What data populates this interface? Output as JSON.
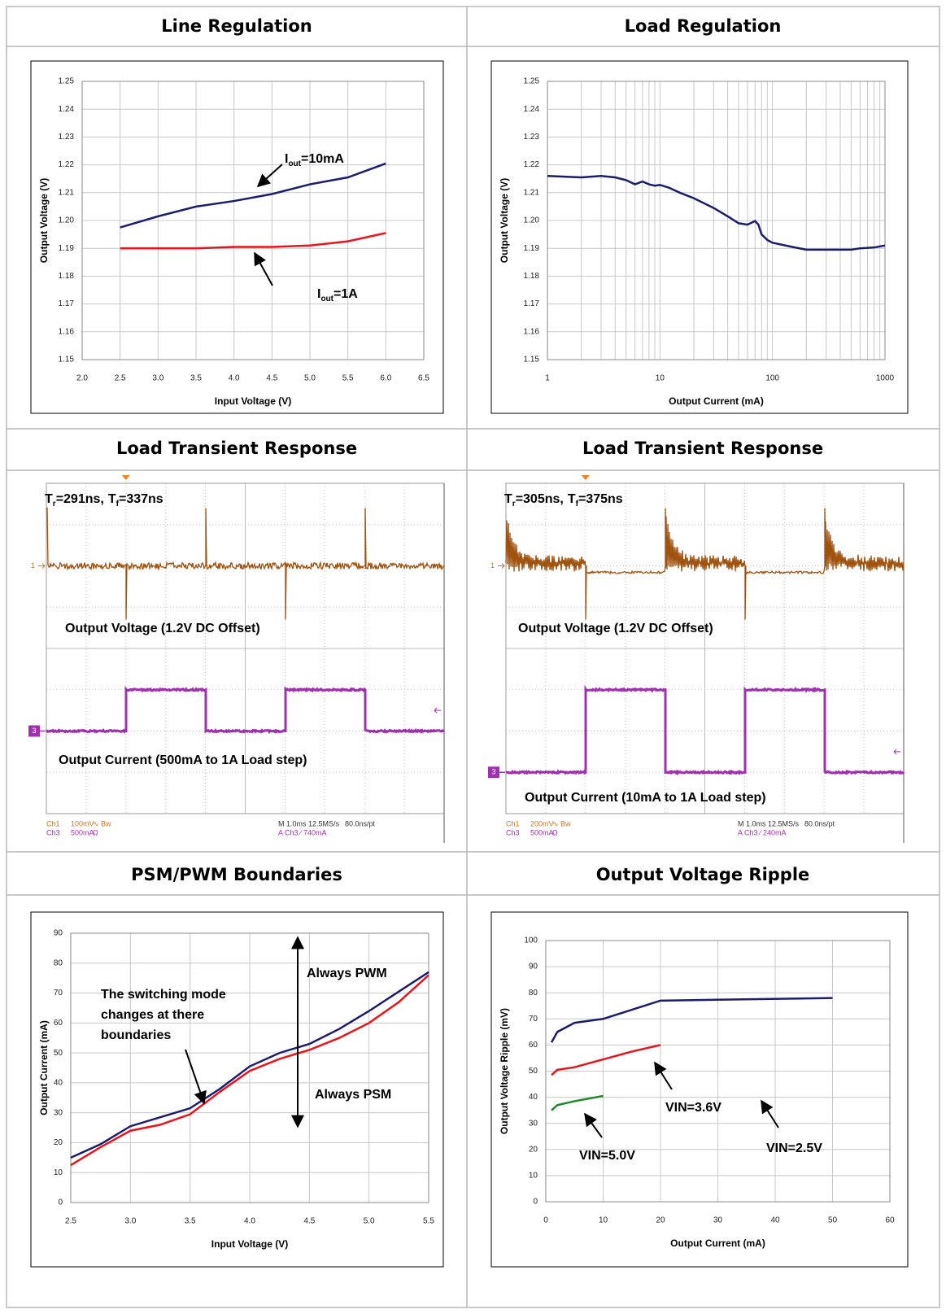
{
  "chart_data": [
    {
      "type": "line",
      "title": "Line Regulation",
      "xlabel": "Input Voltage (V)",
      "ylabel": "Output Voltage (V)",
      "xlim": [
        2,
        6.5
      ],
      "xticks": [
        {
          "value": 2,
          "label": "2.0"
        },
        2.5,
        {
          "value": 3,
          "label": "3.0"
        },
        3.5,
        {
          "value": 4,
          "label": "4.0"
        },
        4.5,
        {
          "value": 5,
          "label": "5.0"
        },
        5.5,
        {
          "value": 6,
          "label": "6.0"
        },
        6.5
      ],
      "ylim": [
        1.15,
        1.25
      ],
      "yticks": [
        1.15,
        1.16,
        1.17,
        1.18,
        1.19,
        {
          "value": 1.2,
          "label": "1.20"
        },
        1.21,
        1.22,
        1.23,
        1.24,
        1.25
      ],
      "grid": true,
      "series": [
        {
          "label": [
            "I",
            "out",
            "=10mA"
          ],
          "color": "#1c1c6e",
          "x": [
            2.5,
            3.0,
            3.5,
            4.0,
            4.5,
            5.0,
            5.5,
            6.0
          ],
          "values": [
            1.1975,
            1.2015,
            1.205,
            1.207,
            1.2095,
            1.213,
            1.2155,
            1.2205
          ]
        },
        {
          "label": [
            "I",
            "out",
            "=1A"
          ],
          "color": "#e8141c",
          "x": [
            2.5,
            3.0,
            3.5,
            4.0,
            4.5,
            5.0,
            5.5,
            6.0
          ],
          "values": [
            1.19,
            1.19,
            1.19,
            1.1905,
            1.1905,
            1.191,
            1.1925,
            1.1955
          ]
        }
      ]
    },
    {
      "type": "line",
      "title": "Load Regulation",
      "xlabel": "Output Current (mA)",
      "ylabel": "Output Voltage (V)",
      "xscale": "log",
      "minor_grid": true,
      "xlim": [
        1,
        1000
      ],
      "xticks": [
        1,
        10,
        100,
        1000
      ],
      "ylim": [
        1.15,
        1.25
      ],
      "yticks": [
        1.15,
        1.16,
        1.17,
        1.18,
        1.19,
        {
          "value": 1.2,
          "label": "1.20"
        },
        1.21,
        1.22,
        1.23,
        1.24,
        1.25
      ],
      "grid": true,
      "series": [
        {
          "color": "#1c1c6e",
          "x": [
            1,
            2,
            3,
            4,
            5,
            6,
            7,
            8,
            9,
            10,
            12,
            15,
            20,
            30,
            40,
            50,
            60,
            70,
            75,
            80,
            90,
            100,
            150,
            200,
            300,
            500,
            600,
            800,
            1000
          ],
          "values": [
            1.216,
            1.2155,
            1.216,
            1.2155,
            1.2145,
            1.213,
            1.214,
            1.213,
            1.2125,
            1.2128,
            1.2118,
            1.21,
            1.208,
            1.2045,
            1.2015,
            1.199,
            1.1985,
            1.1998,
            1.1985,
            1.195,
            1.193,
            1.192,
            1.1905,
            1.1895,
            1.1895,
            1.1895,
            1.19,
            1.1903,
            1.191
          ]
        }
      ]
    },
    {
      "type": "scope",
      "title": "Load Transient Response",
      "timing": [
        [
          "T",
          "r",
          "=291ns,"
        ],
        [
          "T",
          "f",
          "=337ns"
        ]
      ],
      "trace_labels": [
        "Output Voltage (1.2V DC Offset)",
        "Output Current (500mA to 1A Load step)"
      ],
      "channel_markers": [
        "1",
        "3"
      ],
      "footer_left": [
        [
          "Ch1",
          "100mV",
          "∿ Bw"
        ],
        [
          "Ch3",
          "500mA",
          "Ω"
        ]
      ],
      "footer_right": [
        [
          "M 1.0ms 12.5MS/s",
          "80.0ns/pt"
        ],
        [
          "A Ch3 ∕ 740mA"
        ]
      ]
    },
    {
      "type": "scope",
      "title": "Load Transient Response",
      "timing": [
        [
          "T",
          "r",
          "=305ns,"
        ],
        [
          "T",
          "f",
          "=375ns"
        ]
      ],
      "trace_labels": [
        "Output Voltage (1.2V DC Offset)",
        "Output Current (10mA to 1A Load step)"
      ],
      "channel_markers": [
        "1",
        "3"
      ],
      "footer_left": [
        [
          "Ch1",
          "200mV",
          "∿ Bw"
        ],
        [
          "Ch3",
          "500mA",
          "Ω"
        ]
      ],
      "footer_right": [
        [
          "M 1.0ms 12.5MS/s",
          "80.0ns/pt"
        ],
        [
          "A Ch3 ∕ 240mA"
        ]
      ]
    },
    {
      "type": "line",
      "title": "PSM/PWM Boundaries",
      "xlabel": "Input Voltage (V)",
      "ylabel": "Output Current (mA)",
      "xlim": [
        2.5,
        5.5
      ],
      "xticks": [
        2.5,
        {
          "value": 3,
          "label": "3.0"
        },
        3.5,
        {
          "value": 4,
          "label": "4.0"
        },
        4.5,
        {
          "value": 5,
          "label": "5.0"
        },
        5.5
      ],
      "ylim": [
        0,
        90
      ],
      "yticks": [
        0,
        10,
        20,
        30,
        40,
        50,
        60,
        70,
        80,
        90
      ],
      "grid": true,
      "annotations": [
        "Always PWM",
        "Always PSM"
      ],
      "note": [
        "The switching mode",
        "changes at there",
        "boundaries"
      ],
      "series": [
        {
          "color": "#1c1c6e",
          "x": [
            2.5,
            2.75,
            3.0,
            3.25,
            3.5,
            3.75,
            4.0,
            4.25,
            4.5,
            4.75,
            5.0,
            5.25,
            5.5
          ],
          "values": [
            15,
            19.5,
            25.5,
            28.5,
            31.5,
            38,
            45.5,
            50,
            53,
            58,
            64,
            70.5,
            77
          ]
        },
        {
          "color": "#e8141c",
          "x": [
            2.5,
            2.75,
            3.0,
            3.25,
            3.5,
            3.75,
            4.0,
            4.25,
            4.5,
            4.75,
            5.0,
            5.25,
            5.5
          ],
          "values": [
            12.5,
            18.5,
            24,
            26,
            29.5,
            37,
            44,
            48,
            51,
            55,
            60,
            67,
            76
          ]
        }
      ]
    },
    {
      "type": "line",
      "title": "Output Voltage Ripple",
      "xlabel": "Output Current (mA)",
      "ylabel": "Output Voltage Ripple (mV)",
      "xlim": [
        0,
        60
      ],
      "xticks": [
        0,
        10,
        20,
        30,
        40,
        50,
        60
      ],
      "ylim": [
        0,
        100
      ],
      "yticks": [
        0,
        10,
        20,
        30,
        40,
        50,
        60,
        70,
        80,
        90,
        100
      ],
      "grid": true,
      "series": [
        {
          "name": "VIN=2.5V",
          "color": "#1c1c6e",
          "x": [
            1,
            2,
            5,
            10,
            15,
            20,
            50
          ],
          "values": [
            61,
            65,
            68.5,
            70,
            73.5,
            77,
            78
          ]
        },
        {
          "name": "VIN=3.6V",
          "color": "#e8141c",
          "x": [
            1,
            2,
            5,
            10,
            15,
            20
          ],
          "values": [
            48.5,
            50.5,
            51.5,
            54.5,
            57.5,
            60
          ]
        },
        {
          "name": "VIN=5.0V",
          "color": "#1e8a2a",
          "x": [
            1,
            2,
            5,
            10
          ],
          "values": [
            35,
            37,
            38.5,
            40.5
          ]
        }
      ]
    }
  ]
}
